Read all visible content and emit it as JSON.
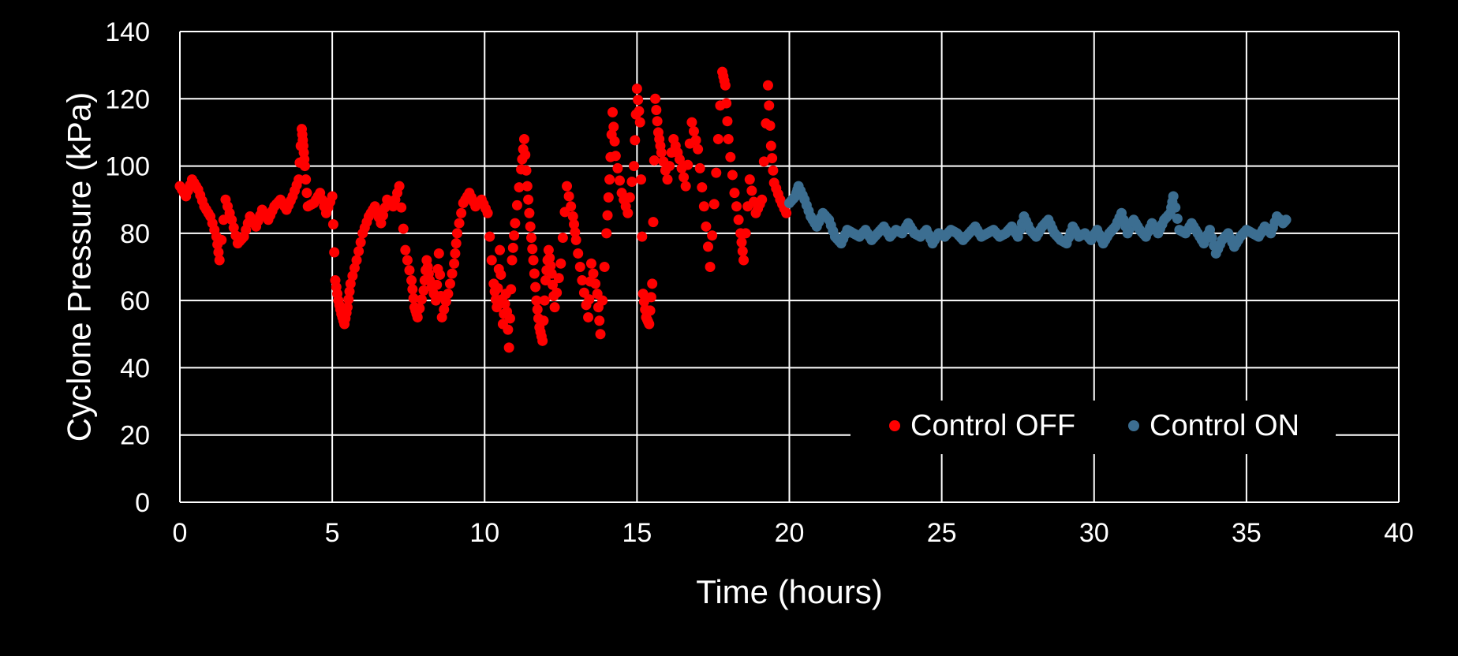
{
  "chart_data": {
    "type": "scatter",
    "title": "",
    "xlabel": "Time (hours)",
    "ylabel": "Cyclone Pressure (kPa)",
    "xlim": [
      0,
      40
    ],
    "ylim": [
      0,
      140
    ],
    "xticks": [
      "0",
      "5",
      "10",
      "15",
      "20",
      "25",
      "30",
      "35",
      "40"
    ],
    "yticks": [
      "0",
      "20",
      "40",
      "60",
      "80",
      "100",
      "120",
      "140"
    ],
    "grid": true,
    "legend_position": "bottom-right",
    "background": "#000000",
    "grid_color": "#ffffff",
    "series": [
      {
        "name": "Control OFF",
        "color": "#ff0000",
        "points": [
          [
            0.0,
            94
          ],
          [
            0.2,
            91
          ],
          [
            0.4,
            96
          ],
          [
            0.6,
            93
          ],
          [
            0.8,
            88
          ],
          [
            1.0,
            85
          ],
          [
            1.2,
            79
          ],
          [
            1.3,
            72
          ],
          [
            1.5,
            90
          ],
          [
            1.7,
            84
          ],
          [
            1.9,
            77
          ],
          [
            2.1,
            79
          ],
          [
            2.3,
            85
          ],
          [
            2.5,
            82
          ],
          [
            2.7,
            87
          ],
          [
            2.9,
            84
          ],
          [
            3.1,
            88
          ],
          [
            3.3,
            90
          ],
          [
            3.5,
            87
          ],
          [
            3.7,
            91
          ],
          [
            3.9,
            96
          ],
          [
            4.0,
            111
          ],
          [
            4.05,
            106
          ],
          [
            4.1,
            100
          ],
          [
            4.2,
            88
          ],
          [
            4.4,
            89
          ],
          [
            4.6,
            92
          ],
          [
            4.8,
            86
          ],
          [
            5.0,
            91
          ],
          [
            5.1,
            66
          ],
          [
            5.2,
            60
          ],
          [
            5.3,
            56
          ],
          [
            5.4,
            53
          ],
          [
            5.5,
            58
          ],
          [
            5.6,
            65
          ],
          [
            5.8,
            72
          ],
          [
            6.0,
            80
          ],
          [
            6.2,
            85
          ],
          [
            6.4,
            88
          ],
          [
            6.6,
            83
          ],
          [
            6.8,
            90
          ],
          [
            7.0,
            88
          ],
          [
            7.2,
            94
          ],
          [
            7.4,
            75
          ],
          [
            7.6,
            66
          ],
          [
            7.7,
            58
          ],
          [
            7.8,
            55
          ],
          [
            8.0,
            63
          ],
          [
            8.1,
            72
          ],
          [
            8.2,
            66
          ],
          [
            8.4,
            60
          ],
          [
            8.5,
            74
          ],
          [
            8.6,
            55
          ],
          [
            8.8,
            62
          ],
          [
            9.0,
            71
          ],
          [
            9.1,
            80
          ],
          [
            9.3,
            89
          ],
          [
            9.5,
            92
          ],
          [
            9.7,
            88
          ],
          [
            9.9,
            90
          ],
          [
            10.1,
            86
          ],
          [
            10.3,
            65
          ],
          [
            10.4,
            58
          ],
          [
            10.5,
            75
          ],
          [
            10.6,
            53
          ],
          [
            10.7,
            62
          ],
          [
            10.8,
            46
          ],
          [
            10.9,
            72
          ],
          [
            11.0,
            83
          ],
          [
            11.2,
            99
          ],
          [
            11.3,
            108
          ],
          [
            11.4,
            94
          ],
          [
            11.5,
            82
          ],
          [
            11.6,
            72
          ],
          [
            11.7,
            60
          ],
          [
            11.8,
            52
          ],
          [
            11.9,
            48
          ],
          [
            12.0,
            66
          ],
          [
            12.1,
            75
          ],
          [
            12.2,
            68
          ],
          [
            12.3,
            58
          ],
          [
            12.5,
            71
          ],
          [
            12.7,
            94
          ],
          [
            12.9,
            85
          ],
          [
            13.0,
            78
          ],
          [
            13.2,
            66
          ],
          [
            13.4,
            55
          ],
          [
            13.5,
            71
          ],
          [
            13.7,
            62
          ],
          [
            13.8,
            50
          ],
          [
            14.0,
            80
          ],
          [
            14.1,
            96
          ],
          [
            14.2,
            116
          ],
          [
            14.3,
            103
          ],
          [
            14.5,
            92
          ],
          [
            14.7,
            86
          ],
          [
            14.9,
            100
          ],
          [
            15.0,
            123
          ],
          [
            15.1,
            113
          ],
          [
            15.2,
            62
          ],
          [
            15.3,
            55
          ],
          [
            15.4,
            53
          ],
          [
            15.5,
            65
          ],
          [
            15.6,
            120
          ],
          [
            15.7,
            110
          ],
          [
            15.8,
            104
          ],
          [
            16.0,
            96
          ],
          [
            16.2,
            108
          ],
          [
            16.4,
            102
          ],
          [
            16.6,
            94
          ],
          [
            16.8,
            113
          ],
          [
            17.0,
            105
          ],
          [
            17.2,
            88
          ],
          [
            17.4,
            70
          ],
          [
            17.6,
            98
          ],
          [
            17.8,
            128
          ],
          [
            17.9,
            124
          ],
          [
            18.0,
            108
          ],
          [
            18.2,
            92
          ],
          [
            18.4,
            80
          ],
          [
            18.5,
            72
          ],
          [
            18.7,
            96
          ],
          [
            18.9,
            86
          ],
          [
            19.1,
            90
          ],
          [
            19.3,
            124
          ],
          [
            19.4,
            106
          ],
          [
            19.5,
            95
          ],
          [
            19.7,
            90
          ],
          [
            19.9,
            86
          ]
        ]
      },
      {
        "name": "Control ON",
        "color": "#3c6e91",
        "points": [
          [
            20.0,
            89
          ],
          [
            20.2,
            91
          ],
          [
            20.3,
            94
          ],
          [
            20.5,
            90
          ],
          [
            20.7,
            85
          ],
          [
            20.9,
            82
          ],
          [
            21.1,
            86
          ],
          [
            21.3,
            84
          ],
          [
            21.5,
            79
          ],
          [
            21.7,
            77
          ],
          [
            21.9,
            81
          ],
          [
            22.1,
            80
          ],
          [
            22.3,
            79
          ],
          [
            22.5,
            81
          ],
          [
            22.7,
            78
          ],
          [
            22.9,
            80
          ],
          [
            23.1,
            82
          ],
          [
            23.3,
            79
          ],
          [
            23.5,
            81
          ],
          [
            23.7,
            80
          ],
          [
            23.9,
            83
          ],
          [
            24.1,
            80
          ],
          [
            24.3,
            79
          ],
          [
            24.5,
            81
          ],
          [
            24.7,
            77
          ],
          [
            24.9,
            80
          ],
          [
            25.1,
            79
          ],
          [
            25.3,
            81
          ],
          [
            25.5,
            80
          ],
          [
            25.7,
            78
          ],
          [
            25.9,
            80
          ],
          [
            26.1,
            82
          ],
          [
            26.3,
            79
          ],
          [
            26.5,
            80
          ],
          [
            26.7,
            81
          ],
          [
            26.9,
            79
          ],
          [
            27.1,
            80
          ],
          [
            27.3,
            82
          ],
          [
            27.5,
            79
          ],
          [
            27.7,
            85
          ],
          [
            27.9,
            81
          ],
          [
            28.1,
            79
          ],
          [
            28.3,
            82
          ],
          [
            28.5,
            84
          ],
          [
            28.7,
            80
          ],
          [
            28.9,
            78
          ],
          [
            29.1,
            77
          ],
          [
            29.3,
            82
          ],
          [
            29.5,
            79
          ],
          [
            29.7,
            80
          ],
          [
            29.9,
            78
          ],
          [
            30.1,
            81
          ],
          [
            30.3,
            77
          ],
          [
            30.5,
            80
          ],
          [
            30.7,
            82
          ],
          [
            30.9,
            86
          ],
          [
            31.1,
            80
          ],
          [
            31.3,
            84
          ],
          [
            31.5,
            81
          ],
          [
            31.7,
            79
          ],
          [
            31.9,
            83
          ],
          [
            32.1,
            80
          ],
          [
            32.3,
            84
          ],
          [
            32.5,
            86
          ],
          [
            32.6,
            91
          ],
          [
            32.8,
            81
          ],
          [
            33.0,
            80
          ],
          [
            33.2,
            83
          ],
          [
            33.4,
            80
          ],
          [
            33.6,
            77
          ],
          [
            33.8,
            81
          ],
          [
            34.0,
            74
          ],
          [
            34.2,
            78
          ],
          [
            34.4,
            80
          ],
          [
            34.6,
            76
          ],
          [
            34.8,
            79
          ],
          [
            35.0,
            81
          ],
          [
            35.2,
            80
          ],
          [
            35.4,
            79
          ],
          [
            35.6,
            82
          ],
          [
            35.8,
            80
          ],
          [
            36.0,
            85
          ],
          [
            36.2,
            83
          ],
          [
            36.3,
            84
          ]
        ]
      }
    ]
  }
}
